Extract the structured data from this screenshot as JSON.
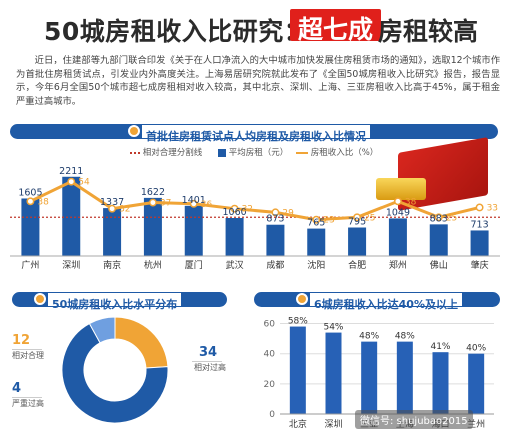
{
  "header": {
    "title_part1": "50城房租收入比研究：",
    "title_highlight": "超七成",
    "title_part2": "房租较高"
  },
  "intro_text": "近日，住建部等九部门联合印发《关于在人口净流入的大中城市加快发展住房租赁市场的通知》，选取12个城市作为首批住房租赁试点，引发业内外高度关注。上海易居研究院就此发布了《全国50城房租收入比研究》报告，报告显示，今年6月全国50个城市超七成房租相对收入较高，其中北京、深圳、上海、三亚房租收入比高于45%，属于租金严重过高城市。",
  "colors": {
    "blue": "#1f5aa6",
    "orange": "#f0a436",
    "red": "#e0201b",
    "light_blue": "#6f9fe0"
  },
  "chart_data": [
    {
      "type": "bar",
      "title": "首批住房租赁试点人均房租及房租收入比情况",
      "legend": [
        "相对合理分割线",
        "平均房租（元）",
        "房租收入比（%）"
      ],
      "categories": [
        "广州",
        "深圳",
        "南京",
        "杭州",
        "厦门",
        "武汉",
        "成都",
        "沈阳",
        "合肥",
        "郑州",
        "佛山",
        "肇庆"
      ],
      "series": [
        {
          "name": "平均房租（元）",
          "type": "bar",
          "values": [
            1605,
            2211,
            1337,
            1622,
            1401,
            1060,
            873,
            765,
            795,
            1049,
            883,
            713
          ]
        },
        {
          "name": "房租收入比（%）",
          "type": "line",
          "values": [
            38,
            54,
            32,
            37,
            36,
            32,
            29,
            23,
            25,
            38,
            25,
            33
          ]
        }
      ],
      "reference_line": 25,
      "ylim_bar": [
        0,
        2400
      ],
      "ylim_line": [
        0,
        70
      ]
    },
    {
      "type": "pie",
      "title": "50城房租收入比水平分布",
      "categories": [
        "相对合理",
        "相对过高",
        "严重过高"
      ],
      "values": [
        12,
        34,
        4
      ],
      "colors": [
        "#f0a436",
        "#1f5aa6",
        "#6f9fe0"
      ]
    },
    {
      "type": "bar",
      "title": "6城房租收入比达40%及以上",
      "categories": [
        "北京",
        "深圳",
        "三亚",
        "上海",
        "海口",
        "兰州"
      ],
      "values": [
        58,
        54,
        48,
        48,
        41,
        40
      ],
      "value_labels": [
        "58%",
        "54%",
        "48%",
        "48%",
        "41%",
        "40%"
      ],
      "y_ticks": [
        0,
        20,
        40,
        60
      ],
      "ylim": [
        0,
        65
      ]
    }
  ],
  "watermark": "微信号: shujubao2015"
}
